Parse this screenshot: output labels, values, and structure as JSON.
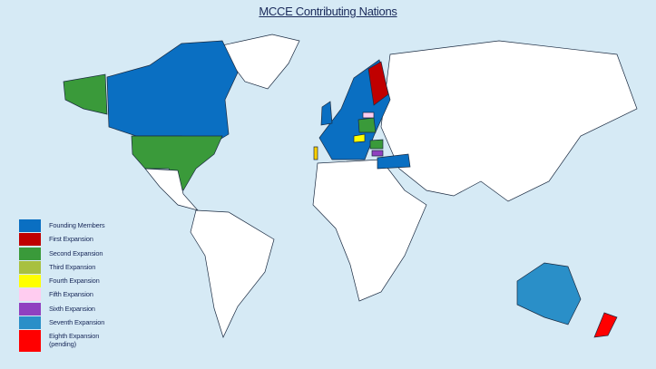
{
  "title": "MCCE Contributing Nations",
  "colors": {
    "ocean": "#d6eaf5",
    "non_member": "#ffffff",
    "founding": "#0a6fc2",
    "first": "#c00000",
    "second": "#3a9a3a",
    "third": "#a8c040",
    "fourth": "#ffff00",
    "fifth": "#ffccf0",
    "sixth": "#9040c0",
    "seventh": "#2a8fc8",
    "eighth": "#ff0000"
  },
  "legend": [
    {
      "label": "Founding Members",
      "color": "#0a6fc2"
    },
    {
      "label": "First Expansion",
      "color": "#c00000"
    },
    {
      "label": "Second Expansion",
      "color": "#3a9a3a"
    },
    {
      "label": "Third Expansion",
      "color": "#a8c040"
    },
    {
      "label": "Fourth Expansion",
      "color": "#ffff00"
    },
    {
      "label": "Fifth Expansion",
      "color": "#ffccf0"
    },
    {
      "label": "Sixth Expansion",
      "color": "#9040c0"
    },
    {
      "label": "Seventh Expansion",
      "color": "#2a8fc8"
    },
    {
      "label": "Eighth Expansion (pending)",
      "color": "#ff0000"
    }
  ]
}
